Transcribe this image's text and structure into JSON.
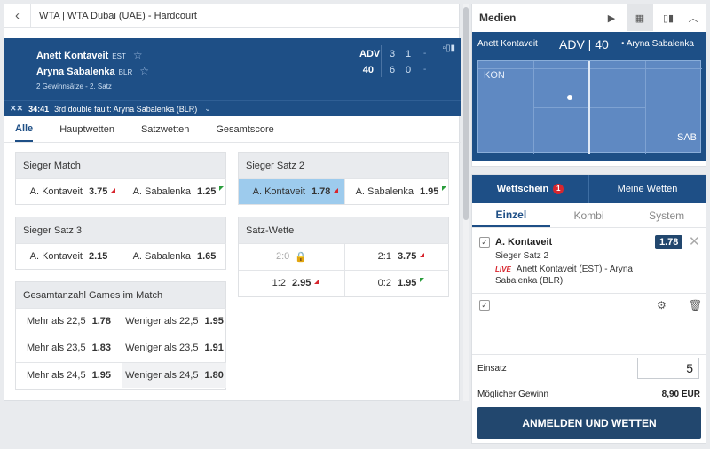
{
  "breadcrumb": {
    "back": "‹",
    "text": "WTA | WTA Dubai (UAE) - Hardcourt"
  },
  "score": {
    "p1": {
      "name": "Anett Kontaveit",
      "nat": "EST",
      "points": "ADV",
      "sets": [
        "3",
        "1",
        "-"
      ]
    },
    "p2": {
      "name": "Aryna Sabalenka",
      "nat": "BLR",
      "points": "40",
      "sets": [
        "6",
        "0",
        "-"
      ]
    },
    "info": "2 Gewinnsätze - 2. Satz",
    "time": "34:41",
    "event": "3rd double fault: Aryna Sabalenka (BLR)"
  },
  "tabs": [
    "Alle",
    "Hauptwetten",
    "Satzwetten",
    "Gesamtscore"
  ],
  "markets": {
    "sieger_match": {
      "title": "Sieger Match",
      "a": "A. Kontaveit",
      "a_odd": "3.75",
      "b": "A. Sabalenka",
      "b_odd": "1.25"
    },
    "sieger_satz2": {
      "title": "Sieger Satz 2",
      "a": "A. Kontaveit",
      "a_odd": "1.78",
      "b": "A. Sabalenka",
      "b_odd": "1.95"
    },
    "sieger_satz3": {
      "title": "Sieger Satz 3",
      "a": "A. Kontaveit",
      "a_odd": "2.15",
      "b": "A. Sabalenka",
      "b_odd": "1.65"
    },
    "satz_wette": {
      "title": "Satz-Wette",
      "c1": "2:0",
      "c2": "2:1",
      "c2_odd": "3.75",
      "c3": "1:2",
      "c3_odd": "2.95",
      "c4": "0:2",
      "c4_odd": "1.95"
    },
    "games": {
      "title": "Gesamtanzahl Games im Match",
      "rows": [
        {
          "over": "Mehr als 22,5",
          "over_odd": "1.78",
          "under": "Weniger als 22,5",
          "under_odd": "1.95"
        },
        {
          "over": "Mehr als 23,5",
          "over_odd": "1.83",
          "under": "Weniger als 23,5",
          "under_odd": "1.91"
        },
        {
          "over": "Mehr als 24,5",
          "over_odd": "1.95",
          "under": "Weniger als 24,5",
          "under_odd": "1.80"
        }
      ]
    }
  },
  "media": {
    "title": "Medien",
    "p1": "Anett Kontaveit",
    "points": "ADV | 40",
    "p2": "• Aryna Sabalenka",
    "kon": "KON",
    "sab": "SAB"
  },
  "slip": {
    "tab1": "Wettschein",
    "badge": "1",
    "tab2": "Meine Wetten",
    "sub": [
      "Einzel",
      "Kombi",
      "System"
    ],
    "bet": {
      "name": "A. Kontaveit",
      "market": "Sieger Satz 2",
      "live": "LIVE",
      "event": "Anett Kontaveit (EST) - Aryna Sabalenka (BLR)",
      "odd": "1.78"
    },
    "stake_label": "Einsatz",
    "stake": "5",
    "gain_label": "Möglicher Gewinn",
    "gain": "8,90 EUR",
    "cta": "ANMELDEN UND WETTEN"
  }
}
